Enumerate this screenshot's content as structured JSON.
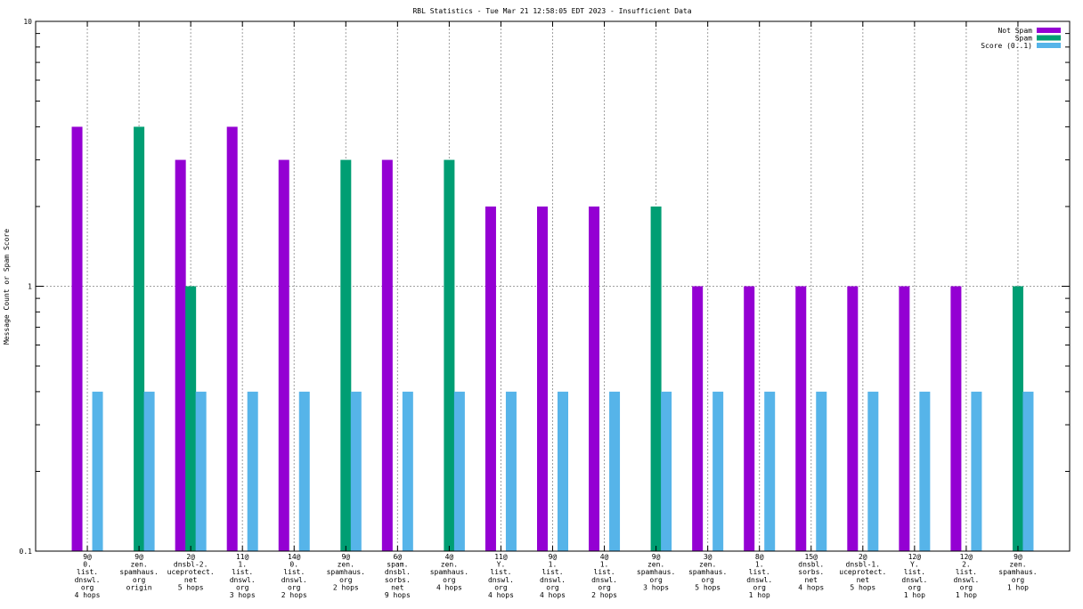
{
  "chart_data": {
    "type": "bar",
    "title": "RBL Statistics - Tue Mar 21 12:58:05 EDT 2023 - Insufficient Data",
    "xlabel": "",
    "ylabel": "Message Count or Spam Score",
    "yscale": "log",
    "ylim": [
      0.1,
      10
    ],
    "yticks": [
      "0.1",
      "1",
      "10"
    ],
    "grid": true,
    "legend_position": "top-right",
    "categories": [
      [
        "9@",
        "0.",
        "list.",
        "dnswl.",
        "org",
        "4 hops"
      ],
      [
        "9@",
        "zen.",
        "spamhaus.",
        "org",
        "origin"
      ],
      [
        "2@",
        "dnsbl-2.",
        "uceprotect.",
        "net",
        "5 hops"
      ],
      [
        "11@",
        "1.",
        "list.",
        "dnswl.",
        "org",
        "3 hops"
      ],
      [
        "14@",
        "0.",
        "list.",
        "dnswl.",
        "org",
        "2 hops"
      ],
      [
        "9@",
        "zen.",
        "spamhaus.",
        "org",
        "2 hops"
      ],
      [
        "6@",
        "spam.",
        "dnsbl.",
        "sorbs.",
        "net",
        "9 hops"
      ],
      [
        "4@",
        "zen.",
        "spamhaus.",
        "org",
        "4 hops"
      ],
      [
        "11@",
        "Y.",
        "list.",
        "dnswl.",
        "org",
        "4 hops"
      ],
      [
        "9@",
        "1.",
        "list.",
        "dnswl.",
        "org",
        "4 hops"
      ],
      [
        "4@",
        "1.",
        "list.",
        "dnswl.",
        "org",
        "2 hops"
      ],
      [
        "9@",
        "zen.",
        "spamhaus.",
        "org",
        "3 hops"
      ],
      [
        "3@",
        "zen.",
        "spamhaus.",
        "org",
        "5 hops"
      ],
      [
        "8@",
        "1.",
        "list.",
        "dnswl.",
        "org",
        "1 hop"
      ],
      [
        "15@",
        "dnsbl.",
        "sorbs.",
        "net",
        "4 hops"
      ],
      [
        "2@",
        "dnsbl-1.",
        "uceprotect.",
        "net",
        "5 hops"
      ],
      [
        "12@",
        "Y.",
        "list.",
        "dnswl.",
        "org",
        "1 hop"
      ],
      [
        "12@",
        "2.",
        "list.",
        "dnswl.",
        "org",
        "1 hop"
      ],
      [
        "9@",
        "zen.",
        "spamhaus.",
        "org",
        "1 hop"
      ]
    ],
    "series": [
      {
        "name": "Not Spam",
        "color": "#9400d3",
        "values": [
          4,
          0,
          3,
          4,
          3,
          0,
          3,
          0,
          2,
          2,
          2,
          0,
          1,
          1,
          1,
          1,
          1,
          1,
          0
        ]
      },
      {
        "name": "Spam",
        "color": "#009e73",
        "values": [
          0,
          4,
          1,
          0,
          0,
          3,
          0,
          3,
          0,
          0,
          0,
          2,
          0,
          0,
          0,
          0,
          0,
          0,
          1
        ]
      },
      {
        "name": "Score (0..1)",
        "color": "#56b4e9",
        "values": [
          0.4,
          0.4,
          0.4,
          0.4,
          0.4,
          0.4,
          0.4,
          0.4,
          0.4,
          0.4,
          0.4,
          0.4,
          0.4,
          0.4,
          0.4,
          0.4,
          0.4,
          0.4,
          0.4
        ]
      }
    ]
  }
}
